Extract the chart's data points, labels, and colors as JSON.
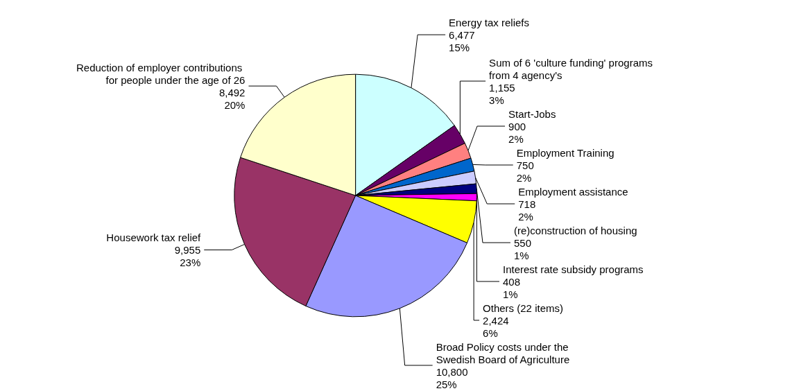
{
  "chart_data": {
    "type": "pie",
    "categories": [
      "Energy tax reliefs",
      "Sum of 6 'culture funding' programs from 4 agency's",
      "Start-Jobs",
      "Employment Training",
      "Employment assistance",
      "(re)construction of housing",
      "Interest rate subsidy programs",
      "Others (22 items)",
      "Broad Policy costs under the Swedish Board of Agriculture",
      "Housework tax relief",
      "Reduction of employer contributions for people under the age of 26"
    ],
    "values": [
      6477,
      1155,
      900,
      750,
      718,
      550,
      408,
      2424,
      10800,
      9955,
      8492
    ],
    "value_labels": [
      "6,477\n15%",
      "1,155\n3%",
      "900\n2%",
      "750\n2%",
      "718\n2%",
      "550\n1%",
      "408\n1%",
      "2,424\n6%",
      "10,800\n25%",
      "9,955\n23%",
      "8,492\n20%"
    ],
    "colors": [
      "#ccffff",
      "#660066",
      "#ff8080",
      "#0066cc",
      "#ccccff",
      "#000080",
      "#ff00ff",
      "#ffff00",
      "#9999ff",
      "#993366",
      "#ffffcc"
    ],
    "legend": false
  }
}
